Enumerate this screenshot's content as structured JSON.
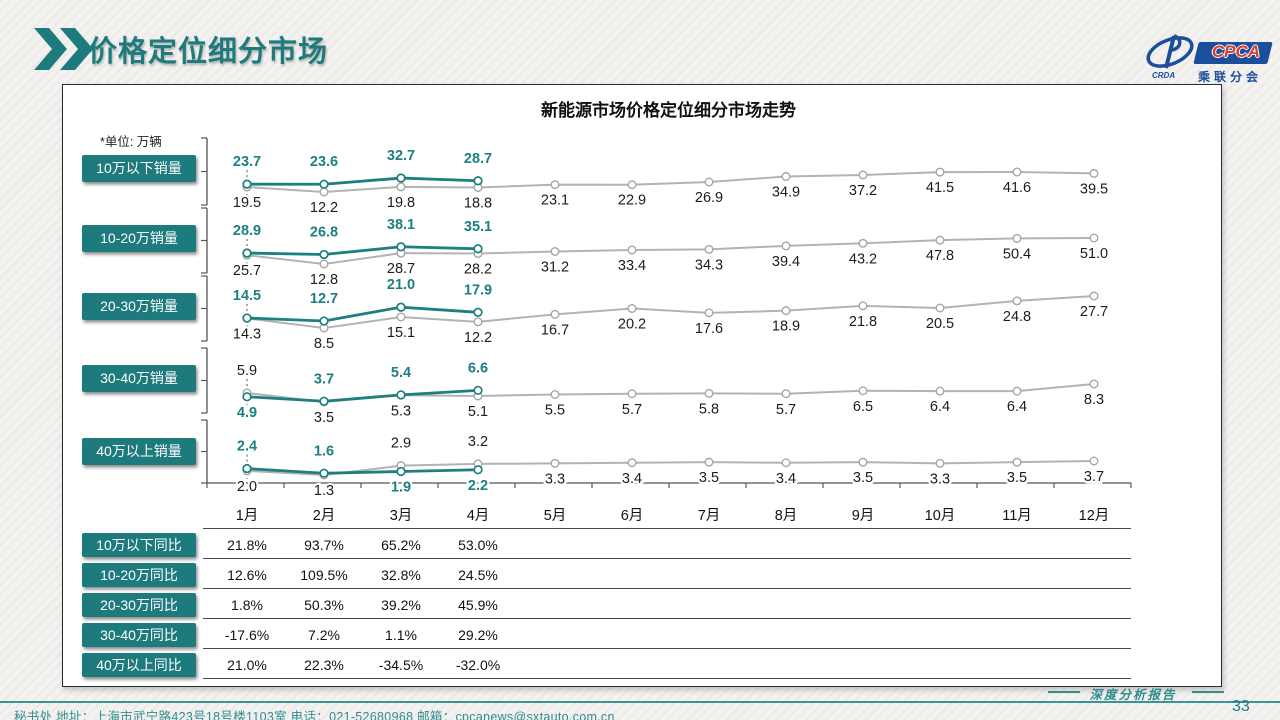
{
  "header": {
    "title": "价格定位细分市场"
  },
  "logo": {
    "name": "CPCA",
    "subtitle": "乘联分会"
  },
  "chart_data": {
    "type": "line",
    "title": "新能源市场价格定位细分市场走势",
    "unit_note": "*单位: 万辆",
    "x": [
      "1月",
      "2月",
      "3月",
      "4月",
      "5月",
      "6月",
      "7月",
      "8月",
      "9月",
      "10月",
      "11月",
      "12月"
    ],
    "grid": false,
    "legend_position": "none",
    "panels": [
      {
        "label": "10万以下销量",
        "current_year": [
          23.7,
          23.6,
          32.7,
          28.7
        ],
        "previous_year": [
          19.5,
          12.2,
          19.8,
          18.8,
          23.1,
          22.9,
          26.9,
          34.9,
          37.2,
          41.5,
          41.6,
          39.5
        ]
      },
      {
        "label": "10-20万销量",
        "current_year": [
          28.9,
          26.8,
          38.1,
          35.1
        ],
        "previous_year": [
          25.7,
          12.8,
          28.7,
          28.2,
          31.2,
          33.4,
          34.3,
          39.4,
          43.2,
          47.8,
          50.4,
          51.0
        ]
      },
      {
        "label": "20-30万销量",
        "current_year": [
          14.5,
          12.7,
          21.0,
          17.9
        ],
        "previous_year": [
          14.3,
          8.5,
          15.1,
          12.2,
          16.7,
          20.2,
          17.6,
          18.9,
          21.8,
          20.5,
          24.8,
          27.7
        ]
      },
      {
        "label": "30-40万销量",
        "current_year": [
          4.9,
          3.7,
          5.4,
          6.6
        ],
        "previous_year": [
          5.9,
          3.5,
          5.3,
          5.1,
          5.5,
          5.7,
          5.8,
          5.7,
          6.5,
          6.4,
          6.4,
          8.3
        ]
      },
      {
        "label": "40万以上销量",
        "current_year": [
          2.4,
          1.6,
          1.9,
          2.2
        ],
        "previous_year": [
          2.0,
          1.3,
          2.9,
          3.2,
          3.3,
          3.4,
          3.5,
          3.4,
          3.5,
          3.3,
          3.5,
          3.7
        ]
      }
    ],
    "yoy_table": [
      {
        "label": "10万以下同比",
        "values": [
          "21.8%",
          "93.7%",
          "65.2%",
          "53.0%"
        ]
      },
      {
        "label": "10-20万同比",
        "values": [
          "12.6%",
          "109.5%",
          "32.8%",
          "24.5%"
        ]
      },
      {
        "label": "20-30万同比",
        "values": [
          "1.8%",
          "50.3%",
          "39.2%",
          "45.9%"
        ]
      },
      {
        "label": "30-40万同比",
        "values": [
          "-17.6%",
          "7.2%",
          "1.1%",
          "29.2%"
        ]
      },
      {
        "label": "40万以上同比",
        "values": [
          "21.0%",
          "22.3%",
          "-34.5%",
          "-32.0%"
        ]
      }
    ],
    "colors": {
      "current_year": "#1e7f81",
      "previous_year": "#b3b3b3"
    }
  },
  "footer": {
    "contact": "秘书处   地址：上海市武宁路423号18号楼1103室  电话：021-52680968   邮箱：cpcanews@sxtauto.com.cn",
    "report_label": "深度分析报告",
    "page_number": "33"
  }
}
